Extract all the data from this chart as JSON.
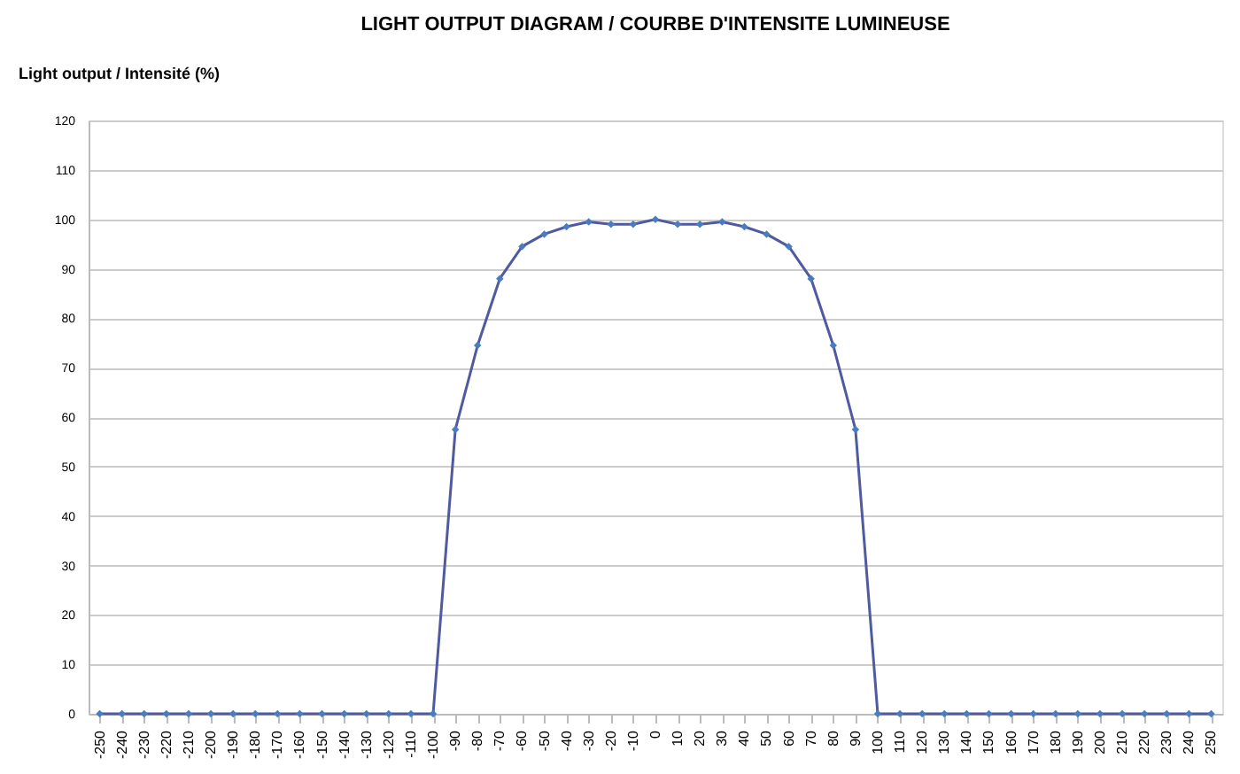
{
  "chart_data": {
    "type": "line",
    "title": "LIGHT OUTPUT DIAGRAM / COURBE D'INTENSITE LUMINEUSE",
    "ylabel": "Light output / Intensité (%)",
    "categories": [
      "-250",
      "-240",
      "-230",
      "-220",
      "-210",
      "-200",
      "-190",
      "-180",
      "-170",
      "-160",
      "-150",
      "-140",
      "-130",
      "-120",
      "-110",
      "-100",
      "-90",
      "-80",
      "-70",
      "-60",
      "-50",
      "-40",
      "-30",
      "-20",
      "-10",
      "0",
      "10",
      "20",
      "30",
      "40",
      "50",
      "60",
      "70",
      "80",
      "90",
      "100",
      "110",
      "120",
      "130",
      "140",
      "150",
      "160",
      "170",
      "180",
      "190",
      "200",
      "210",
      "220",
      "230",
      "240",
      "250"
    ],
    "series": [
      {
        "color": "#4f5aa0",
        "values": [
          0,
          0,
          0,
          0,
          0,
          0,
          0,
          0,
          0,
          0,
          0,
          0,
          0,
          0,
          0,
          0,
          57.5,
          74.5,
          88,
          94.5,
          97,
          98.5,
          99.5,
          99,
          99,
          100,
          99,
          99,
          99.5,
          98.5,
          97,
          94.5,
          88,
          74.5,
          57.5,
          0,
          0,
          0,
          0,
          0,
          0,
          0,
          0,
          0,
          0,
          0,
          0,
          0,
          0,
          0,
          0
        ]
      }
    ],
    "ylim": [
      0,
      120
    ],
    "yticks": [
      0,
      10,
      20,
      30,
      40,
      50,
      60,
      70,
      80,
      90,
      100,
      110,
      120
    ],
    "grid": "y",
    "marker": "diamond",
    "line_style": "solid"
  }
}
